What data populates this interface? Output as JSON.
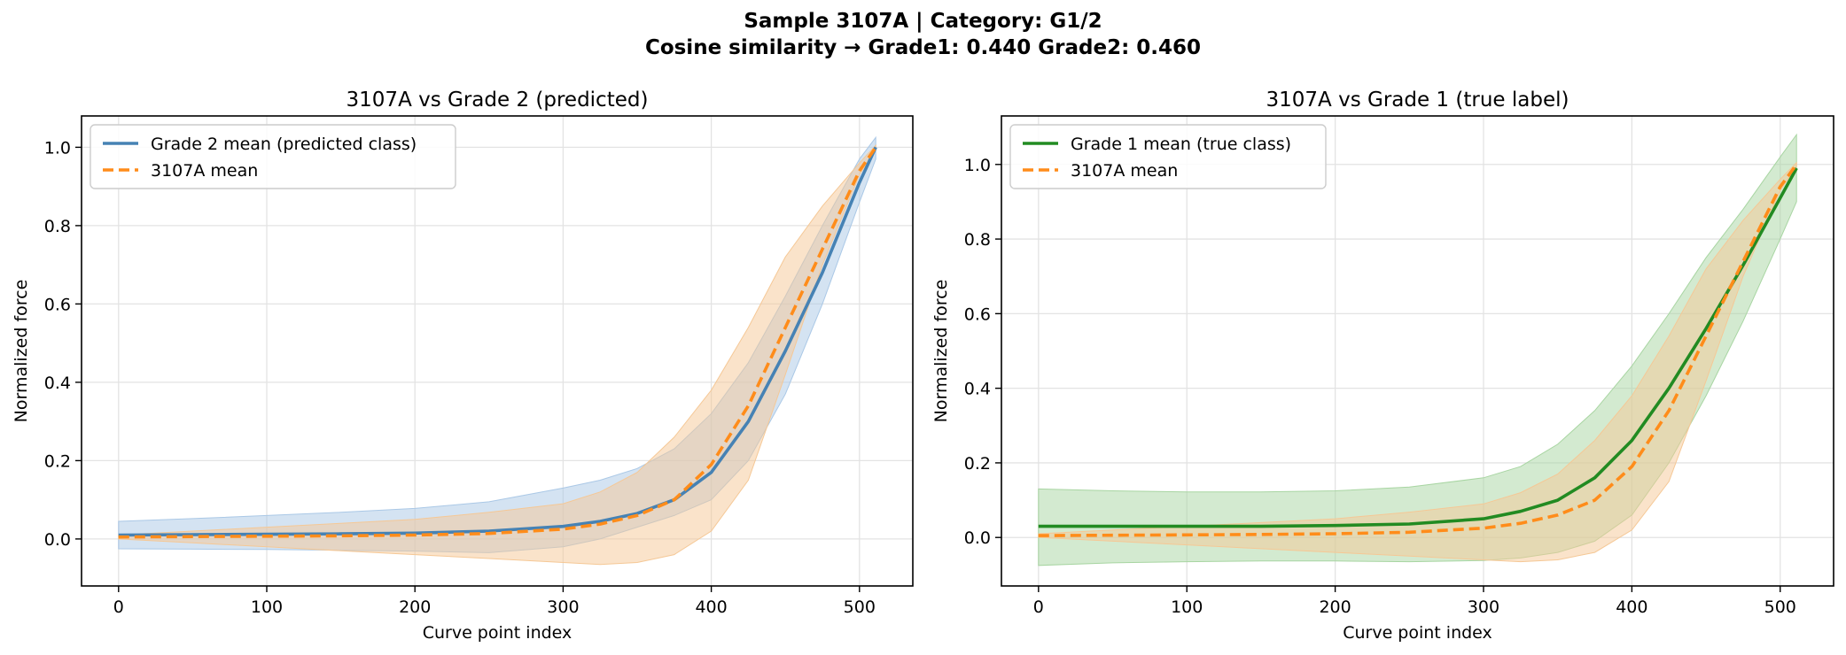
{
  "figure": {
    "title_line1": "Sample 3107A  |  Category: G1/2",
    "title_line2": "Cosine similarity → Grade1: 0.440   Grade2: 0.460"
  },
  "chart_data": [
    {
      "type": "line",
      "title": "3107A vs Grade 2 (predicted)",
      "xlabel": "Curve point index",
      "ylabel": "Normalized force",
      "xlim": [
        -25,
        536
      ],
      "ylim": [
        -0.12,
        1.08
      ],
      "xticks": [
        0,
        100,
        200,
        300,
        400,
        500
      ],
      "yticks": [
        0.0,
        0.2,
        0.4,
        0.6,
        0.8,
        1.0
      ],
      "grid": true,
      "legend_position": "upper-left",
      "x": [
        0,
        50,
        100,
        150,
        200,
        250,
        300,
        325,
        350,
        375,
        400,
        425,
        450,
        475,
        500,
        511
      ],
      "series": [
        {
          "name": "Grade 2 mean (predicted class)",
          "color": "#4682b4",
          "style": "solid",
          "values": [
            0.01,
            0.011,
            0.012,
            0.013,
            0.015,
            0.02,
            0.032,
            0.045,
            0.065,
            0.1,
            0.17,
            0.3,
            0.48,
            0.68,
            0.91,
            1.0
          ],
          "band_lower": [
            -0.025,
            -0.026,
            -0.027,
            -0.029,
            -0.031,
            -0.035,
            -0.02,
            0.0,
            0.03,
            0.06,
            0.1,
            0.2,
            0.37,
            0.6,
            0.86,
            0.97
          ],
          "band_upper": [
            0.045,
            0.052,
            0.06,
            0.068,
            0.078,
            0.095,
            0.13,
            0.15,
            0.18,
            0.23,
            0.32,
            0.45,
            0.62,
            0.8,
            0.97,
            1.025
          ],
          "band_color": "#aac8e6"
        },
        {
          "name": "3107A mean",
          "color": "#ff8c1a",
          "style": "dashed",
          "values": [
            0.005,
            0.006,
            0.007,
            0.008,
            0.01,
            0.014,
            0.025,
            0.038,
            0.06,
            0.1,
            0.19,
            0.34,
            0.54,
            0.74,
            0.94,
            1.0
          ],
          "band_lower": [
            0.0,
            -0.01,
            -0.02,
            -0.03,
            -0.04,
            -0.05,
            -0.06,
            -0.065,
            -0.06,
            -0.04,
            0.02,
            0.15,
            0.42,
            0.7,
            0.93,
            0.995
          ],
          "band_upper": [
            0.01,
            0.02,
            0.03,
            0.04,
            0.05,
            0.068,
            0.09,
            0.12,
            0.17,
            0.26,
            0.38,
            0.54,
            0.72,
            0.85,
            0.96,
            1.005
          ],
          "band_color": "#f5c896"
        }
      ]
    },
    {
      "type": "line",
      "title": "3107A vs Grade 1 (true label)",
      "xlabel": "Curve point index",
      "ylabel": "Normalized force",
      "xlim": [
        -25,
        536
      ],
      "ylim": [
        -0.13,
        1.13
      ],
      "xticks": [
        0,
        100,
        200,
        300,
        400,
        500
      ],
      "yticks": [
        0.0,
        0.2,
        0.4,
        0.6,
        0.8,
        1.0
      ],
      "grid": true,
      "legend_position": "upper-left",
      "x": [
        0,
        50,
        100,
        150,
        200,
        250,
        300,
        325,
        350,
        375,
        400,
        425,
        450,
        475,
        500,
        511
      ],
      "series": [
        {
          "name": "Grade 1 mean (true class)",
          "color": "#228b22",
          "style": "solid",
          "values": [
            0.03,
            0.03,
            0.03,
            0.03,
            0.032,
            0.036,
            0.05,
            0.07,
            0.1,
            0.16,
            0.26,
            0.4,
            0.56,
            0.73,
            0.91,
            0.99
          ],
          "band_lower": [
            -0.075,
            -0.068,
            -0.065,
            -0.063,
            -0.063,
            -0.065,
            -0.062,
            -0.055,
            -0.04,
            -0.01,
            0.06,
            0.2,
            0.38,
            0.58,
            0.8,
            0.9
          ],
          "band_upper": [
            0.13,
            0.125,
            0.122,
            0.122,
            0.125,
            0.135,
            0.16,
            0.19,
            0.25,
            0.34,
            0.46,
            0.6,
            0.75,
            0.88,
            1.02,
            1.08
          ],
          "band_color": "#a8d5a2"
        },
        {
          "name": "3107A mean",
          "color": "#ff8c1a",
          "style": "dashed",
          "values": [
            0.005,
            0.006,
            0.007,
            0.008,
            0.01,
            0.014,
            0.025,
            0.038,
            0.06,
            0.1,
            0.19,
            0.34,
            0.54,
            0.74,
            0.94,
            1.0
          ],
          "band_lower": [
            0.0,
            -0.01,
            -0.02,
            -0.03,
            -0.04,
            -0.05,
            -0.06,
            -0.065,
            -0.06,
            -0.04,
            0.02,
            0.15,
            0.42,
            0.7,
            0.93,
            0.995
          ],
          "band_upper": [
            0.01,
            0.02,
            0.03,
            0.04,
            0.05,
            0.068,
            0.09,
            0.12,
            0.17,
            0.26,
            0.38,
            0.54,
            0.72,
            0.85,
            0.96,
            1.005
          ],
          "band_color": "#f5c896"
        }
      ]
    }
  ]
}
